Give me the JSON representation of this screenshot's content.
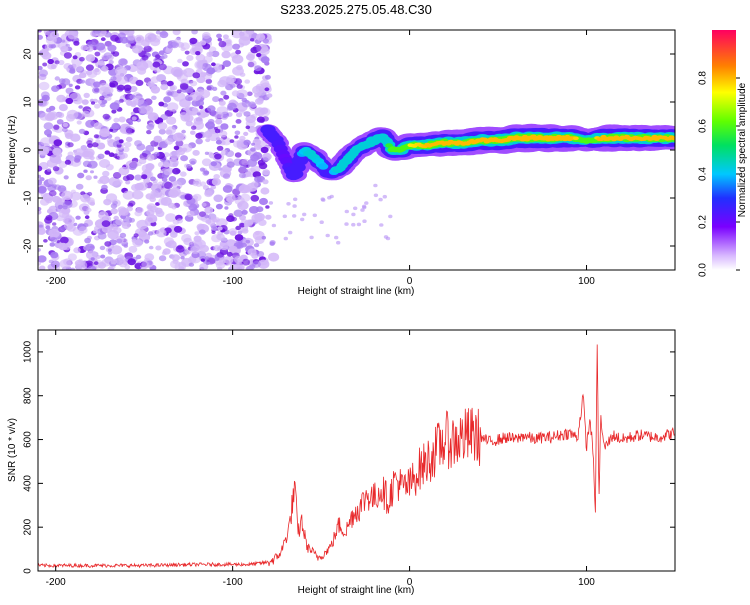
{
  "title": "S233.2025.275.05.48.C30",
  "colors": {
    "snr_line": "#e8282a",
    "ridge": "#dd1010",
    "noise_dark": "#6a12e0",
    "noise_light": "#d2b6f8"
  },
  "chart_data": [
    {
      "type": "heatmap",
      "name": "spectrogram",
      "xlabel": "Height of straight line (km)",
      "ylabel": "Frequency (Hz)",
      "xlim": [
        -210,
        150
      ],
      "ylim": [
        -25,
        25
      ],
      "xticks": [
        -200,
        -100,
        0,
        100
      ],
      "xtick_labels": [
        "-200",
        "-100",
        "0",
        "100"
      ],
      "yticks": [
        -20,
        -10,
        0,
        10,
        20
      ],
      "ytick_labels": [
        "-20",
        "-10",
        "0",
        "10",
        "20"
      ],
      "colorbar": {
        "label": "Normalized spectral amplitude",
        "range": [
          0,
          1
        ],
        "ticks": [
          0,
          0.2,
          0.4,
          0.6,
          0.8
        ],
        "tick_labels": [
          "0.0",
          "0.2",
          "0.4",
          "0.6",
          "0.8"
        ]
      },
      "noise_region_x": [
        -210,
        -80
      ],
      "ridge": {
        "x": [
          -80,
          -75,
          -70,
          -65,
          -60,
          -55,
          -50,
          -45,
          -40,
          -35,
          -30,
          -25,
          -20,
          -15,
          -10,
          -5,
          0,
          10,
          20,
          30,
          40,
          50,
          60,
          70,
          80,
          90,
          100,
          110,
          120,
          130,
          140,
          150
        ],
        "freq": [
          4,
          2,
          -2,
          -6,
          0,
          -1,
          -3,
          -5,
          -4,
          -2,
          0,
          1,
          2,
          3,
          0,
          0,
          1,
          1,
          1.5,
          1.5,
          2,
          2,
          2.5,
          2.5,
          2.5,
          2.5,
          2,
          2.5,
          2.5,
          2.5,
          2.5,
          2.5
        ],
        "amplitude": [
          0.3,
          0.25,
          0.2,
          0.3,
          0.4,
          0.45,
          0.4,
          0.35,
          0.45,
          0.5,
          0.45,
          0.5,
          0.55,
          0.5,
          0.6,
          0.65,
          0.75,
          0.8,
          0.85,
          0.85,
          0.9,
          0.95,
          0.95,
          1.0,
          0.95,
          0.9,
          0.6,
          0.9,
          0.9,
          0.85,
          0.85,
          0.8
        ]
      }
    },
    {
      "type": "line",
      "name": "snr",
      "xlabel": "Height of straight line (km)",
      "ylabel": "SNR (10 * v/v)",
      "xlim": [
        -210,
        150
      ],
      "ylim": [
        0,
        1100
      ],
      "xticks": [
        -200,
        -100,
        0,
        100
      ],
      "xtick_labels": [
        "-200",
        "-100",
        "0",
        "100"
      ],
      "yticks": [
        0,
        200,
        400,
        600,
        800,
        1000
      ],
      "ytick_labels": [
        "0",
        "200",
        "400",
        "600",
        "800",
        "1000"
      ],
      "series": [
        {
          "name": "SNR",
          "x": [
            -210,
            -180,
            -150,
            -120,
            -100,
            -90,
            -80,
            -75,
            -72,
            -68,
            -65,
            -63,
            -61,
            -58,
            -55,
            -52,
            -48,
            -44,
            -40,
            -36,
            -32,
            -28,
            -24,
            -20,
            -16,
            -12,
            -8,
            -4,
            0,
            5,
            10,
            15,
            20,
            25,
            30,
            35,
            40,
            45,
            50,
            55,
            60,
            65,
            70,
            75,
            80,
            85,
            90,
            95,
            98,
            100,
            102,
            104,
            105,
            106,
            107,
            108,
            110,
            115,
            120,
            130,
            140,
            150
          ],
          "y": [
            25,
            25,
            25,
            30,
            30,
            30,
            40,
            60,
            100,
            200,
            380,
            170,
            230,
            110,
            90,
            60,
            80,
            120,
            210,
            180,
            260,
            290,
            350,
            330,
            380,
            320,
            420,
            380,
            390,
            460,
            500,
            550,
            600,
            590,
            610,
            620,
            610,
            590,
            600,
            610,
            600,
            620,
            600,
            610,
            610,
            620,
            630,
            610,
            800,
            560,
            700,
            500,
            250,
            1050,
            300,
            700,
            560,
            620,
            600,
            620,
            610,
            630
          ]
        }
      ]
    }
  ]
}
